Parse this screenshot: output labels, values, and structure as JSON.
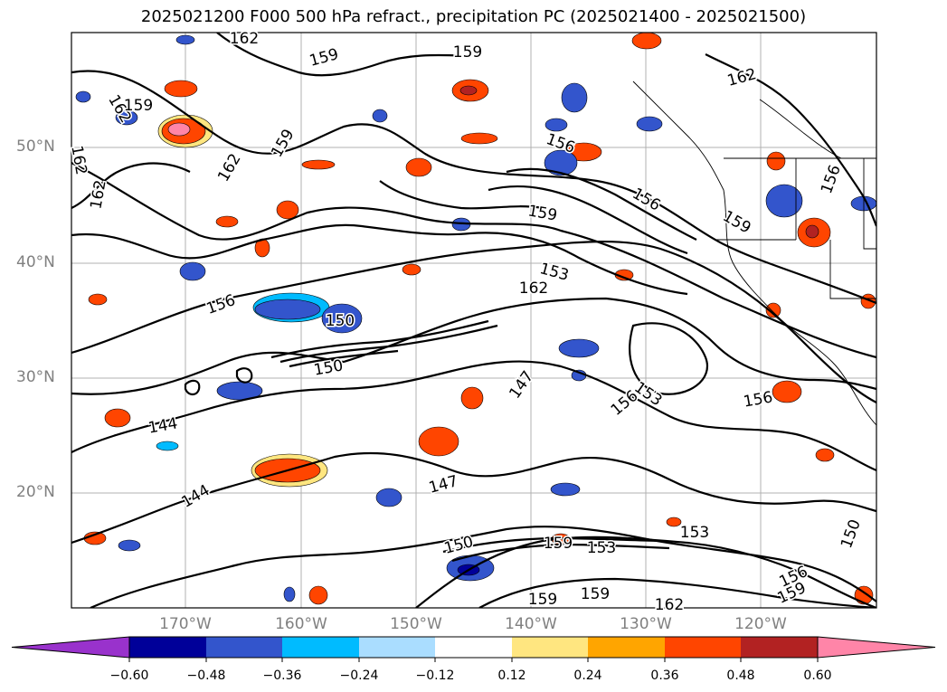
{
  "title": "2025021200 F000 500 hPa refract., precipitation PC (2025021400 - 2025021500)",
  "map": {
    "lat_labels": [
      "50°N",
      "40°N",
      "30°N",
      "20°N"
    ],
    "lon_labels": [
      "170°W",
      "160°W",
      "150°W",
      "140°W",
      "130°W",
      "120°W"
    ],
    "contour_labels": [
      "162",
      "159",
      "159",
      "162",
      "162",
      "162",
      "162",
      "162",
      "159",
      "156",
      "156",
      "156",
      "159",
      "159",
      "153",
      "150",
      "150",
      "153",
      "147",
      "144",
      "147",
      "156",
      "150",
      "153",
      "156",
      "159",
      "159",
      "159",
      "162",
      "156",
      "150",
      "144",
      "156",
      "162",
      "159",
      "159",
      "153"
    ],
    "region": "North Pacific / western North America"
  },
  "colorbar": {
    "ticks": [
      "−0.60",
      "−0.48",
      "−0.36",
      "−0.24",
      "−0.12",
      "0.12",
      "0.24",
      "0.36",
      "0.48",
      "0.60"
    ],
    "colors": [
      "#9932CC",
      "#000099",
      "#3355CC",
      "#00BBFF",
      "#AADDFF",
      "#FFFFFF",
      "#FFE680",
      "#FFA500",
      "#FF4500",
      "#B22222",
      "#FF85A8"
    ]
  }
}
